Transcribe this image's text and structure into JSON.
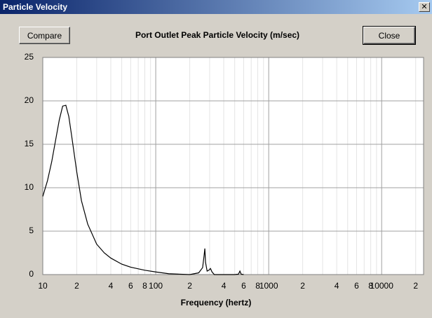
{
  "window": {
    "title": "Particle Velocity",
    "compare_button": "Compare",
    "close_button": "Close"
  },
  "chart_data": {
    "type": "line",
    "title": "Port Outlet Peak Particle Velocity (m/sec)",
    "x_label": "Frequency (hertz)",
    "log_x": true,
    "grid": true,
    "x": [
      10,
      11,
      12,
      13,
      14,
      15,
      16,
      17,
      18,
      20,
      22,
      25,
      30,
      35,
      40,
      50,
      60,
      80,
      100,
      130,
      200,
      240,
      260,
      268,
      272,
      276,
      285,
      295,
      305,
      315,
      330,
      500,
      540,
      556,
      570,
      600
    ],
    "series": [
      {
        "color": "#000000",
        "values": [
          9,
          10.8,
          13,
          15.5,
          17.8,
          19.4,
          19.5,
          18.2,
          16,
          11.8,
          8.5,
          5.8,
          3.5,
          2.5,
          1.9,
          1.2,
          0.85,
          0.5,
          0.3,
          0.1,
          0,
          0.2,
          0.8,
          2.2,
          3,
          1.4,
          0.4,
          0.5,
          0.7,
          0.3,
          0,
          0,
          0.05,
          0.4,
          0.05,
          0
        ]
      }
    ],
    "xlim": [
      10,
      23500
    ],
    "ylim": [
      0,
      25
    ],
    "yticks": [
      0,
      5,
      10,
      15,
      20,
      25
    ],
    "xticks": [
      10,
      {
        "value": 20,
        "label": "2"
      },
      {
        "value": 40,
        "label": "4"
      },
      {
        "value": 60,
        "label": "6"
      },
      {
        "value": 80,
        "label": "8"
      },
      100,
      {
        "value": 200,
        "label": "2"
      },
      {
        "value": 400,
        "label": "4"
      },
      {
        "value": 600,
        "label": "6"
      },
      {
        "value": 800,
        "label": "8"
      },
      1000,
      {
        "value": 2000,
        "label": "2"
      },
      {
        "value": 4000,
        "label": "4"
      },
      {
        "value": 6000,
        "label": "6"
      },
      {
        "value": 8000,
        "label": "8"
      },
      10000,
      {
        "value": 20000,
        "label": "2"
      }
    ],
    "xminorticks": [
      30,
      50,
      70,
      90,
      300,
      500,
      700,
      900,
      3000,
      5000,
      7000,
      9000
    ]
  }
}
